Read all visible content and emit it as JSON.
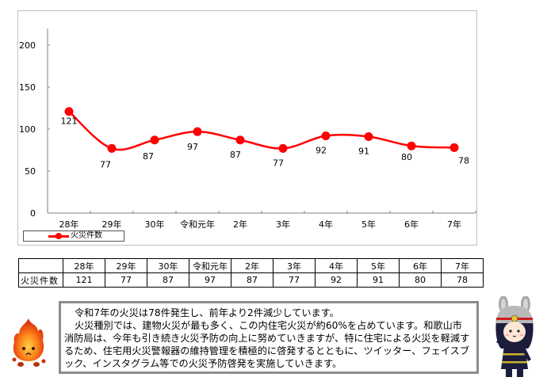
{
  "chart_data": {
    "type": "line",
    "title": "",
    "xlabel": "",
    "ylabel": "",
    "categories": [
      "28年",
      "29年",
      "30年",
      "令和元年",
      "2年",
      "3年",
      "4年",
      "5年",
      "6年",
      "7年"
    ],
    "series": [
      {
        "name": "火災件数",
        "color": "#ff0000",
        "values": [
          121,
          77,
          87,
          97,
          87,
          77,
          92,
          91,
          80,
          78
        ]
      }
    ],
    "ylim": [
      0,
      200
    ],
    "yticks": [
      0,
      50,
      100,
      150,
      200
    ],
    "grid": false,
    "smooth": true,
    "data_labels": true,
    "legend_position": "bottom-left"
  },
  "chart": {
    "yticks": [
      "0",
      "50",
      "100",
      "150",
      "200"
    ],
    "legend_label": "火災件数"
  },
  "table": {
    "row_header": "火災件数",
    "columns": [
      "28年",
      "29年",
      "30年",
      "令和元年",
      "2年",
      "3年",
      "4年",
      "5年",
      "6年",
      "7年"
    ],
    "values": [
      "121",
      "77",
      "87",
      "97",
      "87",
      "77",
      "92",
      "91",
      "80",
      "78"
    ]
  },
  "info": {
    "line1": "令和7年の火災は78件発生し、前年より2件減少しています。",
    "line2": "火災種別では、建物火災が最も多く、この内住宅火災が約60%を占めています。和歌山市消防局は、今年も引き続き火災予防の向上に努めていきますが、特に住宅による火災を軽減するため、住宅用火災警報器の維持管理を積極的に啓発するとともに、ツイッター、フェイスブック、インスタグラム等での火災予防啓発を実施していきます。"
  },
  "mascots": {
    "left": "fire-character",
    "right": "firefighter-character"
  }
}
